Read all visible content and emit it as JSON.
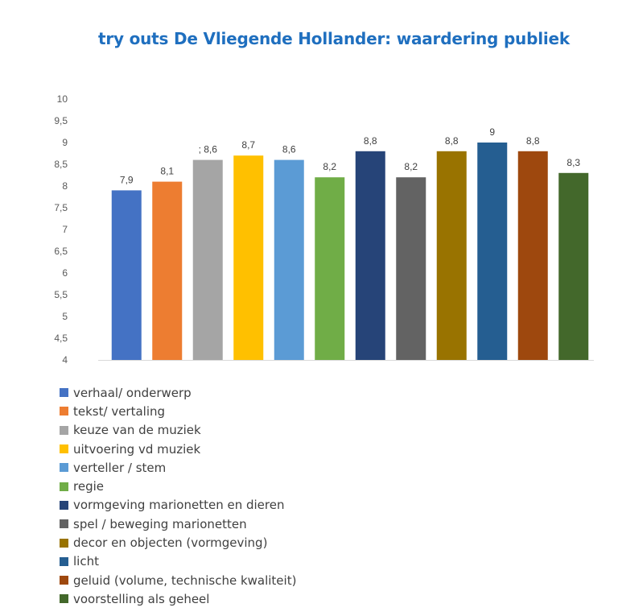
{
  "chart_data": {
    "type": "bar",
    "title": "try outs De Vliegende Hollander: waardering publiek",
    "xlabel": "",
    "ylabel": "",
    "ylim": [
      4,
      10
    ],
    "yticks": [
      "4",
      "4,5",
      "5",
      "5,5",
      "6",
      "6,5",
      "7",
      "7,5",
      "8",
      "8,5",
      "9",
      "9,5",
      "10"
    ],
    "grid": false,
    "legend_position": "bottom",
    "categories": [
      "verhaal/ onderwerp",
      "tekst/ vertaling",
      "keuze van de muziek",
      "uitvoering vd muziek",
      "verteller / stem",
      "regie",
      "vormgeving marionetten en dieren",
      "spel / beweging marionetten",
      "decor en objecten (vormgeving)",
      "licht",
      "geluid (volume, technische kwaliteit)",
      "voorstelling als geheel"
    ],
    "values": [
      7.9,
      8.1,
      8.6,
      8.7,
      8.6,
      8.2,
      8.8,
      8.2,
      8.8,
      9,
      8.8,
      8.3
    ],
    "data_labels": [
      "7,9",
      "8,1",
      "; 8,6",
      "8,7",
      "8,6",
      "8,2",
      "8,8",
      "8,2",
      "8,8",
      "9",
      "8,8",
      "8,3"
    ],
    "colors": [
      "#4472c4",
      "#ed7d31",
      "#a5a5a5",
      "#ffc000",
      "#5b9bd5",
      "#70ad47",
      "#264478",
      "#636363",
      "#997300",
      "#255e91",
      "#9e480e",
      "#43682b"
    ]
  }
}
